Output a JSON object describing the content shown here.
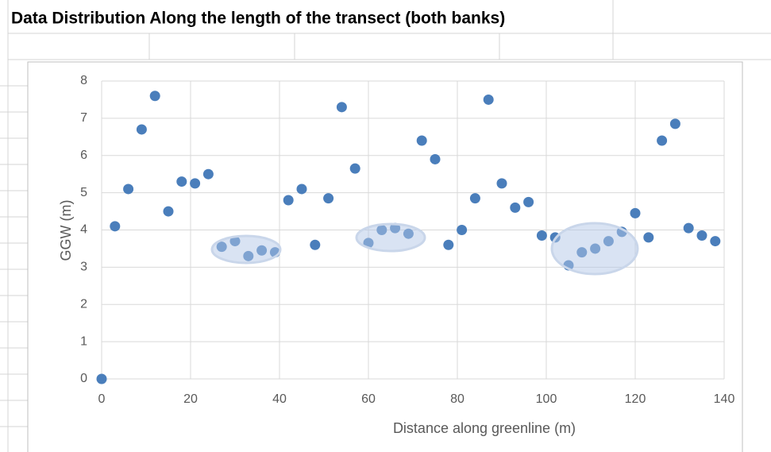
{
  "chart_data": {
    "type": "scatter",
    "title": "Data Distribution Along the length of the transect (both banks)",
    "x_label": "Distance along greenline (m)",
    "y_label": "GGW (m)",
    "x": [
      0,
      3,
      6,
      9,
      12,
      15,
      18,
      21,
      24,
      27,
      30,
      33,
      36,
      39,
      42,
      45,
      48,
      51,
      54,
      57,
      60,
      63,
      66,
      69,
      72,
      75,
      78,
      81,
      84,
      87,
      90,
      93,
      96,
      99,
      102,
      105,
      108,
      111,
      114,
      117,
      120,
      123,
      126,
      129,
      132,
      135,
      138
    ],
    "values": [
      0,
      4.1,
      5.1,
      6.7,
      7.6,
      4.5,
      5.3,
      5.25,
      5.5,
      3.55,
      3.7,
      3.3,
      3.45,
      3.4,
      4.8,
      5.1,
      3.6,
      4.85,
      7.3,
      5.65,
      3.65,
      4.0,
      4.05,
      3.9,
      6.4,
      5.9,
      3.6,
      4.0,
      4.85,
      7.5,
      5.25,
      4.6,
      4.75,
      3.85,
      3.8,
      3.05,
      3.4,
      3.5,
      3.7,
      3.95,
      4.45,
      3.8,
      6.4,
      6.85,
      4.05,
      3.85,
      3.7
    ],
    "color": "#4a7ebb",
    "xlim": [
      0,
      140
    ],
    "xticks": [
      0,
      20,
      40,
      60,
      80,
      100,
      120,
      140
    ],
    "ylim": [
      0,
      8
    ],
    "yticks": [
      0,
      1,
      2,
      3,
      4,
      5,
      6,
      7,
      8
    ],
    "grid": true
  }
}
